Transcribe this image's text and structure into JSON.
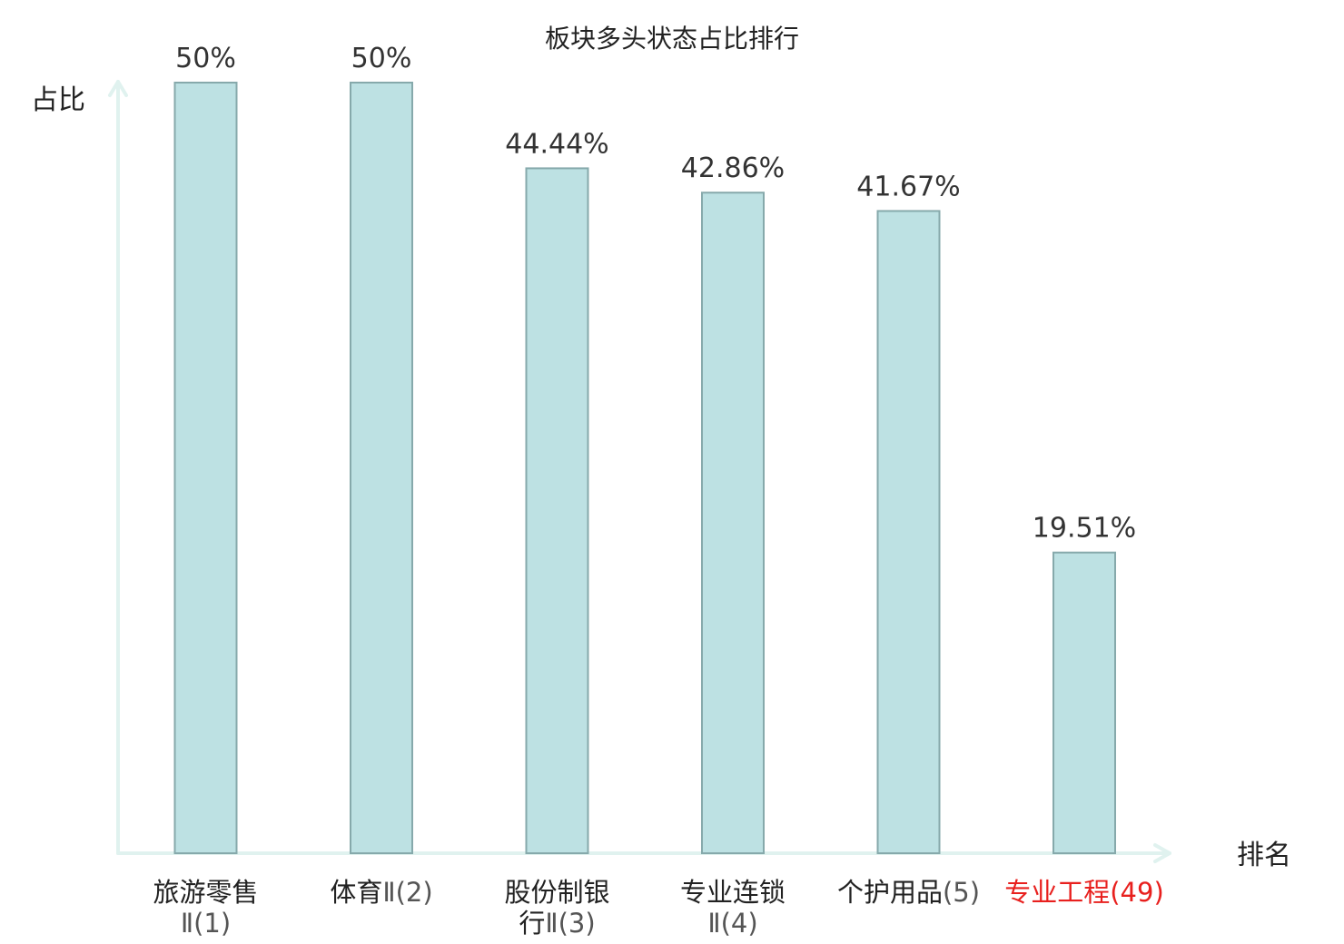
{
  "chart_data": {
    "type": "bar",
    "title": "板块多头状态占比排行",
    "ylabel": "占比",
    "xlabel": "排名",
    "ylim": [
      0,
      50
    ],
    "grid": false,
    "legend": "none",
    "bar_color": "#bde1e3",
    "bar_edge_color": "#86a9ab",
    "axis_color": "#e0f2ef",
    "highlight_color": "#e8201e",
    "categories": [
      {
        "name": "旅游零售Ⅱ",
        "rank": "(1)",
        "lines": [
          {
            "text": "旅游零售",
            "suffix": ""
          },
          {
            "text": "",
            "suffix": "Ⅱ(1)"
          }
        ],
        "highlight": false
      },
      {
        "name": "体育Ⅱ",
        "rank": "(2)",
        "lines": [
          {
            "text": "体育",
            "suffix": "Ⅱ(2)"
          }
        ],
        "highlight": false
      },
      {
        "name": "股份制银行Ⅱ",
        "rank": "(3)",
        "lines": [
          {
            "text": "股份制银",
            "suffix": ""
          },
          {
            "text": "行",
            "suffix": "Ⅱ(3)"
          }
        ],
        "highlight": false
      },
      {
        "name": "专业连锁Ⅱ",
        "rank": "(4)",
        "lines": [
          {
            "text": "专业连锁",
            "suffix": ""
          },
          {
            "text": "",
            "suffix": "Ⅱ(4)"
          }
        ],
        "highlight": false
      },
      {
        "name": "个护用品",
        "rank": "(5)",
        "lines": [
          {
            "text": "个护用品",
            "suffix": "(5)"
          }
        ],
        "highlight": false
      },
      {
        "name": "专业工程",
        "rank": "(49)",
        "lines": [
          {
            "text": "专业工程",
            "suffix": "(49)"
          }
        ],
        "highlight": true
      }
    ],
    "values": [
      50,
      50,
      44.44,
      42.86,
      41.67,
      19.51
    ],
    "value_labels": [
      "50%",
      "50%",
      "44.44%",
      "42.86%",
      "41.67%",
      "19.51%"
    ]
  }
}
